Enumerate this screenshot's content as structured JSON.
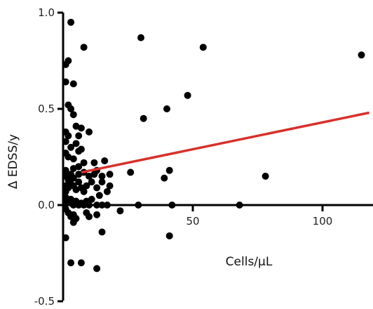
{
  "chart_data": {
    "type": "scatter",
    "title": "",
    "xlabel": "Cells/μL",
    "ylabel": "Δ EDSS/y",
    "xlim": [
      0,
      118
    ],
    "ylim": [
      -0.5,
      1.0
    ],
    "x_ticks": [
      50,
      100
    ],
    "x_tick_labels": [
      "50",
      "100"
    ],
    "y_ticks": [
      1.0,
      0.5,
      0.0,
      -0.5
    ],
    "y_tick_labels": [
      "1.0",
      "0.5",
      "0.0",
      "-0.5"
    ],
    "grid": false,
    "legend": "none",
    "colors": {
      "points": "#000000",
      "trend_line": "#d9302a",
      "axis": "#000000"
    },
    "points": [
      [
        3,
        0.95
      ],
      [
        8,
        0.82
      ],
      [
        30,
        0.87
      ],
      [
        54,
        0.82
      ],
      [
        115,
        0.78
      ],
      [
        1,
        0.73
      ],
      [
        2,
        0.75
      ],
      [
        1,
        0.64
      ],
      [
        4,
        0.63
      ],
      [
        2,
        0.52
      ],
      [
        3,
        0.5
      ],
      [
        4,
        0.47
      ],
      [
        48,
        0.57
      ],
      [
        40,
        0.5
      ],
      [
        31,
        0.45
      ],
      [
        1,
        0.38
      ],
      [
        1,
        0.33
      ],
      [
        2,
        0.36
      ],
      [
        3,
        0.3
      ],
      [
        5,
        0.41
      ],
      [
        6,
        0.36
      ],
      [
        7,
        0.4
      ],
      [
        10,
        0.38
      ],
      [
        1,
        0.27
      ],
      [
        2,
        0.25
      ],
      [
        4,
        0.24
      ],
      [
        5,
        0.32
      ],
      [
        6,
        0.28
      ],
      [
        7,
        0.29
      ],
      [
        8,
        0.22
      ],
      [
        12,
        0.22
      ],
      [
        16,
        0.23
      ],
      [
        1,
        0.18
      ],
      [
        1,
        0.15
      ],
      [
        2,
        0.13
      ],
      [
        3,
        0.16
      ],
      [
        4,
        0.19
      ],
      [
        4,
        0.14
      ],
      [
        6,
        0.2
      ],
      [
        6,
        0.16
      ],
      [
        8,
        0.17
      ],
      [
        10,
        0.15
      ],
      [
        12,
        0.16
      ],
      [
        13,
        0.18
      ],
      [
        15,
        0.15
      ],
      [
        18,
        0.16
      ],
      [
        26,
        0.17
      ],
      [
        39,
        0.14
      ],
      [
        41,
        0.18
      ],
      [
        78,
        0.15
      ],
      [
        1,
        0.1
      ],
      [
        1,
        0.07
      ],
      [
        2,
        0.09
      ],
      [
        3,
        0.11
      ],
      [
        4,
        0.1
      ],
      [
        5,
        0.08
      ],
      [
        6,
        0.12
      ],
      [
        7,
        0.09
      ],
      [
        8,
        0.07
      ],
      [
        9,
        0.1
      ],
      [
        11,
        0.12
      ],
      [
        13,
        0.09
      ],
      [
        15,
        0.12
      ],
      [
        18,
        0.1
      ],
      [
        17,
        0.07
      ],
      [
        14,
        0.05
      ],
      [
        1,
        0.04
      ],
      [
        1,
        0.01
      ],
      [
        2,
        0.02
      ],
      [
        3,
        0.03
      ],
      [
        3,
        0.01
      ],
      [
        4,
        0.0
      ],
      [
        5,
        0.02
      ],
      [
        6,
        0.0
      ],
      [
        7,
        0.01
      ],
      [
        8,
        0.0
      ],
      [
        9,
        0.02
      ],
      [
        10,
        0.0
      ],
      [
        11,
        0.03
      ],
      [
        13,
        0.0
      ],
      [
        15,
        0.0
      ],
      [
        17,
        0.0
      ],
      [
        22,
        -0.03
      ],
      [
        29,
        0.0
      ],
      [
        42,
        0.0
      ],
      [
        68,
        0.0
      ],
      [
        1,
        -0.02
      ],
      [
        2,
        -0.04
      ],
      [
        3,
        -0.06
      ],
      [
        4,
        -0.05
      ],
      [
        4,
        -0.09
      ],
      [
        5,
        -0.07
      ],
      [
        9,
        -0.04
      ],
      [
        10,
        -0.06
      ],
      [
        13,
        -0.05
      ],
      [
        1,
        -0.17
      ],
      [
        15,
        -0.14
      ],
      [
        41,
        -0.16
      ],
      [
        3,
        -0.3
      ],
      [
        7,
        -0.3
      ],
      [
        13,
        -0.33
      ]
    ],
    "trend_line": {
      "x": [
        7,
        118
      ],
      "y": [
        0.17,
        0.48
      ]
    }
  }
}
